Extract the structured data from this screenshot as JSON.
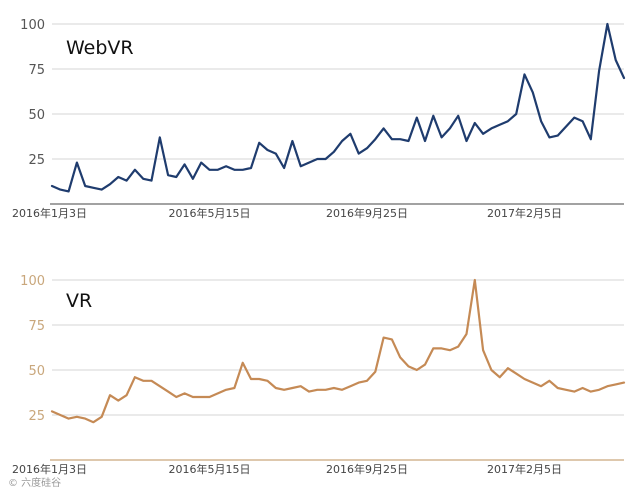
{
  "chart_data": [
    {
      "type": "line",
      "title": "WebVR",
      "ylim": [
        0,
        100
      ],
      "yticks": [
        25,
        50,
        75,
        100
      ],
      "grid": true,
      "x_tick_labels": [
        "2016年1月3日",
        "2016年5月15日",
        "2016年9月25日",
        "2017年2月5日"
      ],
      "x_tick_weeks": [
        0,
        19,
        38,
        57
      ],
      "line_color": "#1f3c6e",
      "axis_color": "#6b6b6b",
      "series": [
        {
          "weeks": [
            0,
            1,
            2,
            3,
            4,
            5,
            6,
            7,
            8,
            9,
            10,
            11,
            12,
            13,
            14,
            15,
            16,
            17,
            18,
            19,
            20,
            21,
            22,
            23,
            24,
            25,
            26,
            27,
            28,
            29,
            30,
            31,
            32,
            33,
            34,
            35,
            36,
            37,
            38,
            39,
            40,
            41,
            42,
            43,
            44,
            45,
            46,
            47,
            48,
            49,
            50,
            51,
            52,
            53,
            54,
            55,
            56,
            57,
            58,
            59,
            60,
            61,
            62,
            63,
            64,
            65,
            66,
            67,
            68,
            69
          ],
          "values": [
            10,
            8,
            7,
            23,
            10,
            9,
            8,
            11,
            15,
            13,
            19,
            14,
            13,
            37,
            16,
            15,
            22,
            14,
            23,
            19,
            19,
            21,
            19,
            19,
            20,
            34,
            30,
            28,
            20,
            35,
            21,
            23,
            25,
            25,
            29,
            35,
            39,
            28,
            31,
            36,
            42,
            36,
            36,
            35,
            48,
            35,
            49,
            37,
            42,
            49,
            35,
            45,
            39,
            42,
            44,
            46,
            50,
            72,
            62,
            46,
            37,
            38,
            43,
            48,
            46,
            36,
            74,
            100,
            80,
            70
          ]
        }
      ]
    },
    {
      "type": "line",
      "title": "VR",
      "ylim": [
        0,
        100
      ],
      "yticks": [
        25,
        50,
        75,
        100
      ],
      "grid": true,
      "x_tick_labels": [
        "2016年1月3日",
        "2016年5月15日",
        "2016年9月25日",
        "2017年2月5日"
      ],
      "x_tick_weeks": [
        0,
        19,
        38,
        57
      ],
      "line_color": "#c58a55",
      "axis_color": "#c9a77c",
      "series": [
        {
          "weeks": [
            0,
            1,
            2,
            3,
            4,
            5,
            6,
            7,
            8,
            9,
            10,
            11,
            12,
            13,
            14,
            15,
            16,
            17,
            18,
            19,
            20,
            21,
            22,
            23,
            24,
            25,
            26,
            27,
            28,
            29,
            30,
            31,
            32,
            33,
            34,
            35,
            36,
            37,
            38,
            39,
            40,
            41,
            42,
            43,
            44,
            45,
            46,
            47,
            48,
            49,
            50,
            51,
            52,
            53,
            54,
            55,
            56,
            57,
            58,
            59,
            60,
            61,
            62,
            63,
            64,
            65,
            66,
            67,
            68,
            69
          ],
          "values": [
            27,
            25,
            23,
            24,
            23,
            21,
            24,
            36,
            33,
            36,
            46,
            44,
            44,
            41,
            38,
            35,
            37,
            35,
            35,
            35,
            37,
            39,
            40,
            54,
            45,
            45,
            44,
            40,
            39,
            40,
            41,
            38,
            39,
            39,
            40,
            39,
            41,
            43,
            44,
            49,
            68,
            67,
            57,
            52,
            50,
            53,
            62,
            62,
            61,
            63,
            70,
            100,
            61,
            50,
            46,
            51,
            48,
            45,
            43,
            41,
            44,
            40,
            39,
            38,
            40,
            38,
            39,
            41,
            42,
            43
          ]
        }
      ]
    }
  ],
  "watermark": "© 六度硅谷"
}
